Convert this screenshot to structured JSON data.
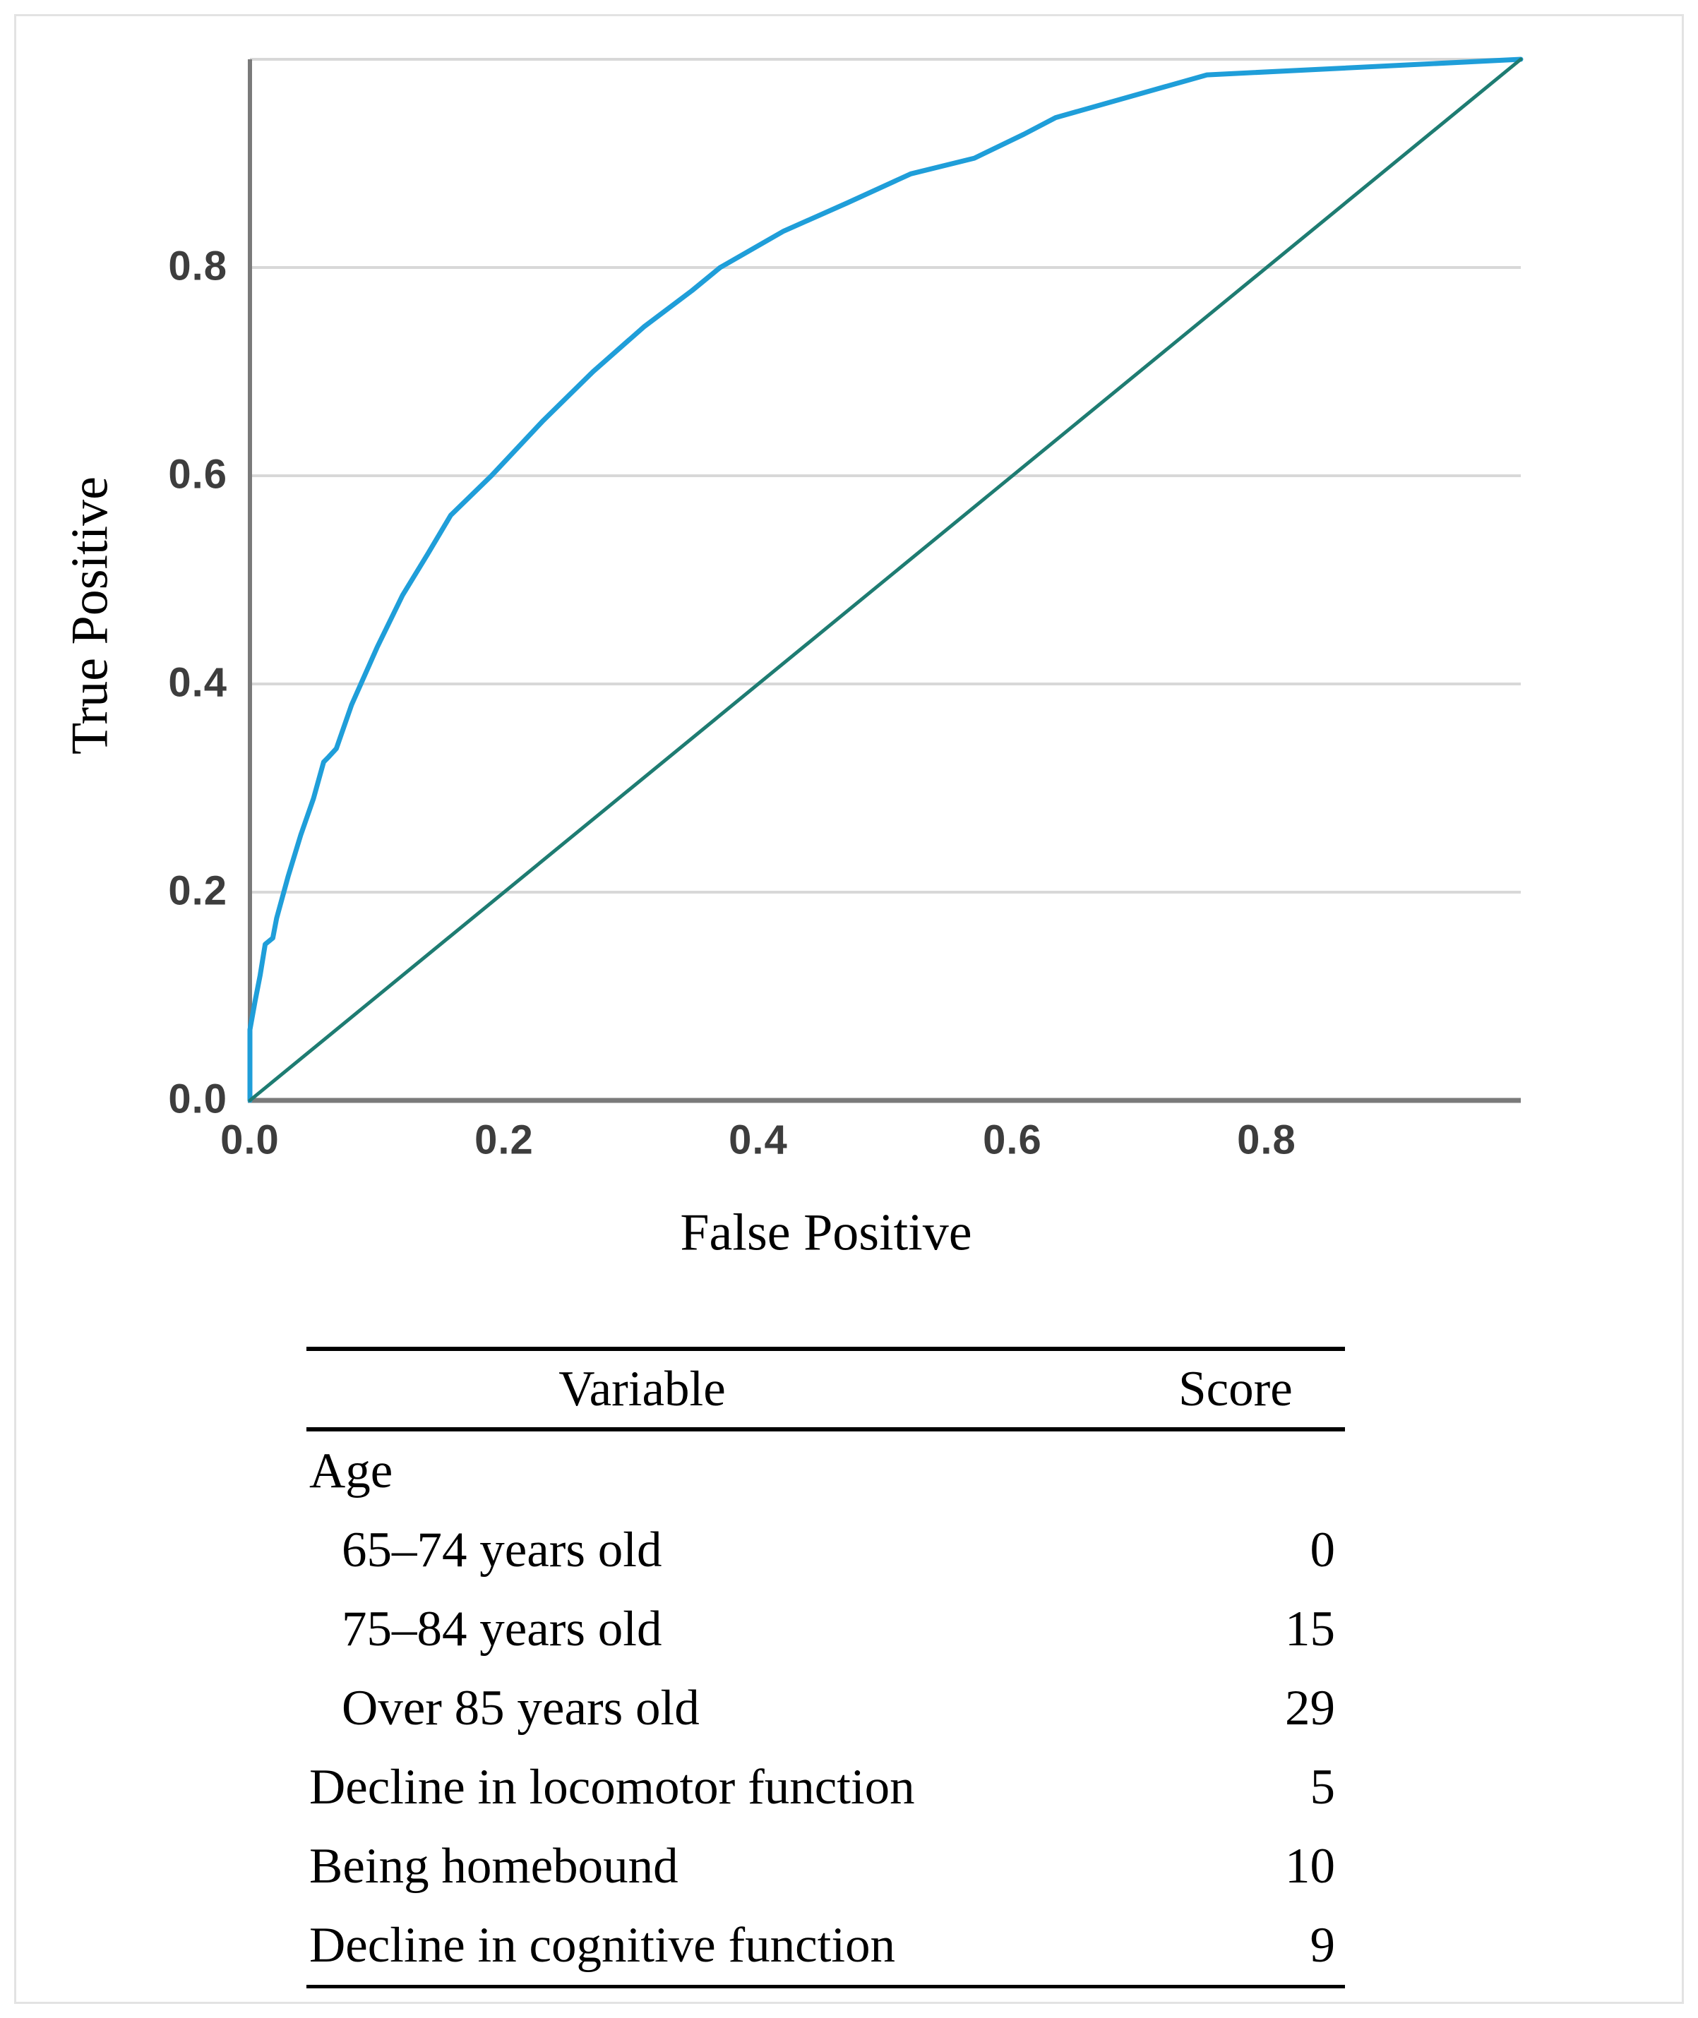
{
  "figure": {
    "x_axis_title": "False Positive",
    "y_axis_title": "True Positive"
  },
  "chart_data": {
    "type": "line",
    "title": "",
    "xlabel": "False Positive",
    "ylabel": "True Positive",
    "xlim": [
      0,
      1
    ],
    "ylim": [
      0,
      1
    ],
    "grid": "horizontal-gridlines-only",
    "legend": "none",
    "x_tick_labels": [
      "0.0",
      "0.2",
      "0.4",
      "0.6",
      "0.8"
    ],
    "y_tick_labels": [
      "0.0",
      "0.2",
      "0.4",
      "0.6",
      "0.8"
    ],
    "colors": {
      "roc_curve": "#1f9ed9",
      "reference_diagonal": "#1e7c72",
      "gridline": "#d8d8d8",
      "axis_line": "#7a7a7a",
      "tick_text": "#3d3d3d"
    },
    "series": [
      {
        "name": "roc_curve",
        "points": [
          [
            0.0,
            0.0
          ],
          [
            0.0,
            0.068
          ],
          [
            0.004,
            0.095
          ],
          [
            0.008,
            0.12
          ],
          [
            0.012,
            0.15
          ],
          [
            0.018,
            0.156
          ],
          [
            0.021,
            0.175
          ],
          [
            0.03,
            0.215
          ],
          [
            0.04,
            0.255
          ],
          [
            0.05,
            0.29
          ],
          [
            0.058,
            0.325
          ],
          [
            0.062,
            0.33
          ],
          [
            0.068,
            0.338
          ],
          [
            0.08,
            0.38
          ],
          [
            0.1,
            0.435
          ],
          [
            0.12,
            0.485
          ],
          [
            0.14,
            0.525
          ],
          [
            0.158,
            0.562
          ],
          [
            0.19,
            0.6
          ],
          [
            0.23,
            0.652
          ],
          [
            0.27,
            0.7
          ],
          [
            0.31,
            0.743
          ],
          [
            0.348,
            0.778
          ],
          [
            0.37,
            0.8
          ],
          [
            0.42,
            0.835
          ],
          [
            0.47,
            0.862
          ],
          [
            0.52,
            0.89
          ],
          [
            0.57,
            0.905
          ],
          [
            0.609,
            0.928
          ],
          [
            0.634,
            0.944
          ],
          [
            0.753,
            0.985
          ],
          [
            1.0,
            1.0
          ]
        ]
      },
      {
        "name": "reference_diagonal",
        "points": [
          [
            0,
            0
          ],
          [
            1,
            1
          ]
        ]
      }
    ]
  },
  "table": {
    "headers": [
      "Variable",
      "Score"
    ],
    "rows": [
      {
        "label": "Age",
        "score": "",
        "indent": false
      },
      {
        "label": "65–74 years old",
        "score": "0",
        "indent": true
      },
      {
        "label": "75–84 years old",
        "score": "15",
        "indent": true
      },
      {
        "label": "Over 85 years old",
        "score": "29",
        "indent": true
      },
      {
        "label": "Decline in locomotor function",
        "score": "5",
        "indent": false
      },
      {
        "label": "Being homebound",
        "score": "10",
        "indent": false
      },
      {
        "label": "Decline in cognitive function",
        "score": "9",
        "indent": false
      }
    ]
  }
}
